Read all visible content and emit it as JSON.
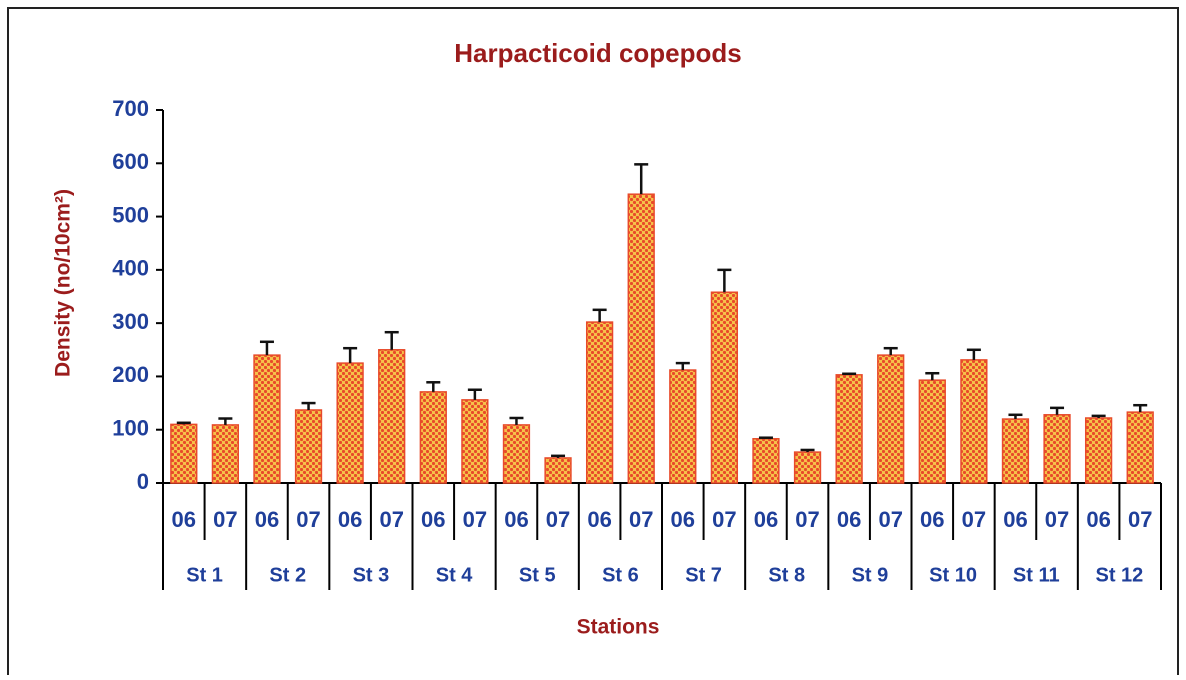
{
  "chart_data": {
    "type": "bar",
    "title": "Harpacticoid copepods",
    "ylabel": "Density (no/10cm²)",
    "xlabel": "Stations",
    "categories": [
      "06",
      "07",
      "06",
      "07",
      "06",
      "07",
      "06",
      "07",
      "06",
      "07",
      "06",
      "07",
      "06",
      "07",
      "06",
      "07",
      "06",
      "07",
      "06",
      "07",
      "06",
      "07",
      "06",
      "07"
    ],
    "groups": [
      "St 1",
      "St 2",
      "St 3",
      "St 4",
      "St 5",
      "St 6",
      "St 7",
      "St 8",
      "St 9",
      "St 10",
      "St 11",
      "St 12"
    ],
    "values": [
      110,
      109,
      240,
      137,
      225,
      250,
      171,
      156,
      109,
      47,
      302,
      542,
      212,
      358,
      83,
      58,
      203,
      240,
      193,
      231,
      120,
      128,
      122,
      133
    ],
    "errors": [
      3,
      12,
      25,
      13,
      28,
      33,
      18,
      19,
      13,
      4,
      23,
      56,
      13,
      42,
      2,
      4,
      2,
      13,
      13,
      19,
      8,
      13,
      4,
      13
    ],
    "color": "#e84a2a",
    "ylim": [
      0,
      700
    ],
    "yticks": [
      0,
      100,
      200,
      300,
      400,
      500,
      600,
      700
    ]
  }
}
